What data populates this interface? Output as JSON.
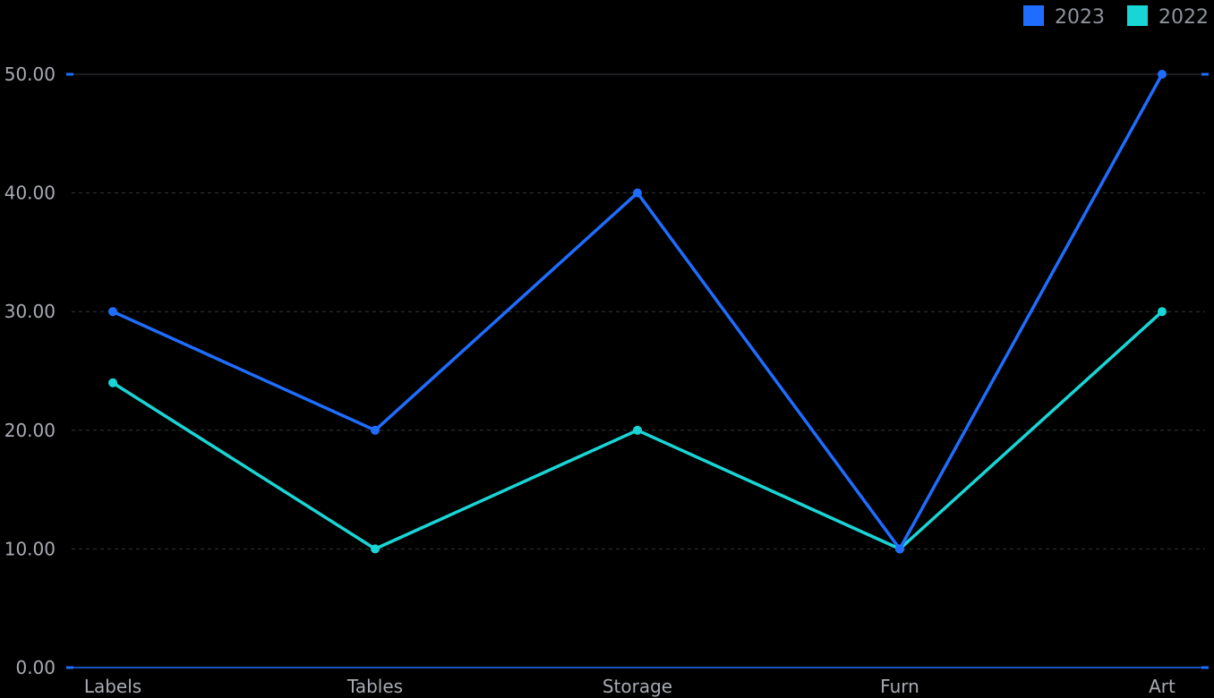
{
  "chart_data": {
    "type": "line",
    "categories": [
      "Labels",
      "Tables",
      "Storage",
      "Furn",
      "Art"
    ],
    "series": [
      {
        "name": "2023",
        "values": [
          30,
          20,
          40,
          10,
          50
        ],
        "color": "#1f6dff"
      },
      {
        "name": "2022",
        "values": [
          24,
          10,
          20,
          10,
          30
        ],
        "color": "#19d6d6"
      }
    ],
    "yticks": [
      "0.00",
      "10.00",
      "20.00",
      "30.00",
      "40.00",
      "50.00"
    ],
    "ylim": [
      0,
      50
    ],
    "grid": true,
    "legend_position": "top-right",
    "title": "",
    "xlabel": "",
    "ylabel": ""
  }
}
